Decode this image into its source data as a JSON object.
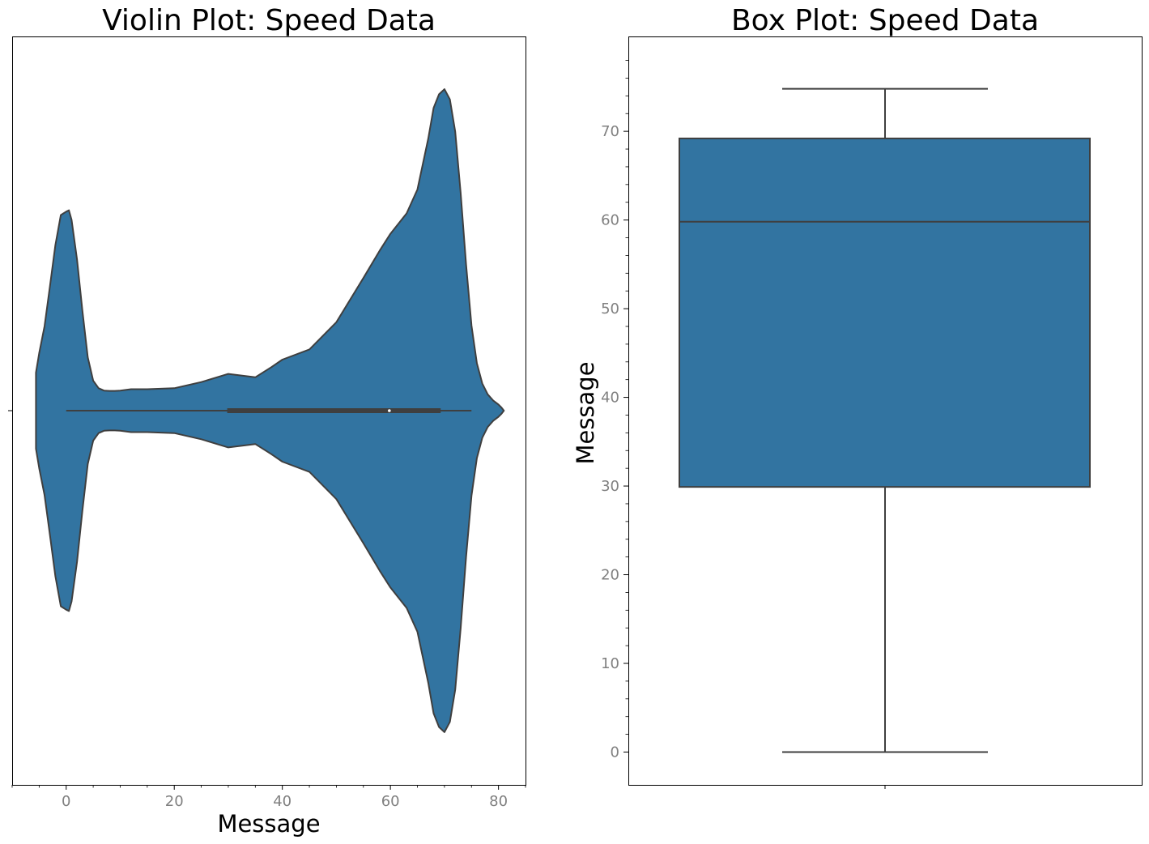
{
  "chart_data": [
    {
      "type": "violin",
      "title": "Violin Plot: Speed Data",
      "xlabel": "Message",
      "ylabel": "",
      "orientation": "horizontal",
      "xlim": [
        -10,
        85
      ],
      "x_ticks": [
        0,
        20,
        40,
        60,
        80
      ],
      "x_tick_labels": [
        "0",
        "20",
        "40",
        "60",
        "80"
      ],
      "x_minor_step": 5,
      "grid": false,
      "color": "#3274a1",
      "line_color": "#3f3f3f",
      "density": {
        "x": [
          -5.6,
          -5,
          -4,
          -3,
          -2,
          -1,
          0,
          0.5,
          1,
          2,
          3,
          4,
          5,
          6,
          7,
          8,
          9,
          10,
          12,
          15,
          20,
          25,
          30,
          35,
          38,
          40,
          45,
          50,
          55,
          58,
          60,
          63,
          65,
          67,
          68,
          69,
          70,
          71,
          72,
          73,
          74,
          75,
          76,
          77,
          78,
          79,
          80,
          80.5,
          81
        ],
        "width": [
          0.112,
          0.169,
          0.248,
          0.366,
          0.487,
          0.575,
          0.585,
          0.589,
          0.561,
          0.445,
          0.293,
          0.157,
          0.088,
          0.066,
          0.059,
          0.058,
          0.058,
          0.059,
          0.063,
          0.063,
          0.066,
          0.084,
          0.108,
          0.098,
          0.128,
          0.15,
          0.18,
          0.26,
          0.39,
          0.47,
          0.52,
          0.58,
          0.65,
          0.8,
          0.89,
          0.93,
          0.945,
          0.915,
          0.82,
          0.64,
          0.43,
          0.25,
          0.14,
          0.08,
          0.048,
          0.03,
          0.018,
          0.01,
          0.0
        ]
      },
      "summary": {
        "min": 0,
        "q1": 29.8,
        "median": 59.8,
        "q3": 69.3,
        "max": 75.0
      }
    },
    {
      "type": "box",
      "title": "Box Plot: Speed Data",
      "xlabel": "",
      "ylabel": "Message",
      "ylim": [
        -3.7,
        80.7
      ],
      "y_ticks": [
        0,
        10,
        20,
        30,
        40,
        50,
        60,
        70
      ],
      "y_tick_labels": [
        "0",
        "10",
        "20",
        "30",
        "40",
        "50",
        "60",
        "70"
      ],
      "y_minor_step": 2,
      "grid": false,
      "color": "#3274a1",
      "line_color": "#3f3f3f",
      "summary": {
        "min": 0,
        "q1": 29.9,
        "median": 59.8,
        "q3": 69.2,
        "max": 74.8
      }
    }
  ]
}
